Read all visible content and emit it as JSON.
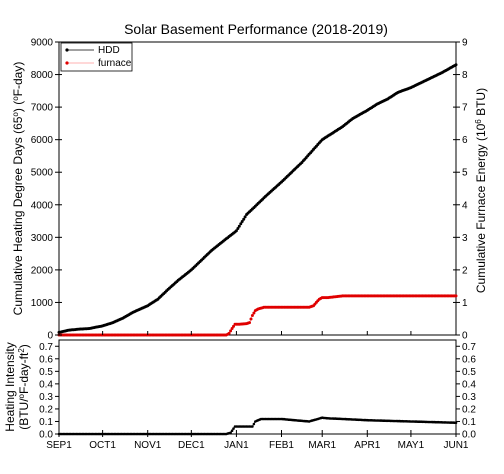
{
  "chart_data": [
    {
      "type": "line",
      "title": "Solar Basement Performance (2018-2019)",
      "ylabel": "Cumulative Heating Degree Days (65°) (°F-day)",
      "ylabel_parts": [
        "Cumulative Heating Degree Days (65",
        "o",
        ") (",
        "o",
        "F-day)"
      ],
      "y2label": "Cumulative Furnace Energy (10^6 BTU)",
      "y2label_parts": [
        "Cumulative Furnace Energy (10",
        "6",
        " BTU)"
      ],
      "ylim": [
        0,
        9000
      ],
      "y2lim": [
        0,
        9
      ],
      "xlim": [
        "2018-09-01",
        "2019-06-01"
      ],
      "x_ticks": [
        "SEP1",
        "OCT1",
        "NOV1",
        "DEC1",
        "JAN1",
        "FEB1",
        "MAR1",
        "APR1",
        "MAY1",
        "JUN1"
      ],
      "y_ticks": [
        0,
        1000,
        2000,
        3000,
        4000,
        5000,
        6000,
        7000,
        8000,
        9000
      ],
      "y2_ticks": [
        0,
        1,
        2,
        3,
        4,
        5,
        6,
        7,
        8,
        9
      ],
      "legend": {
        "placement": "top-left",
        "entries": [
          "HDD",
          "furnace"
        ]
      },
      "series": [
        {
          "name": "HDD",
          "color": "#000000",
          "x": [
            "2018-09-01",
            "2018-09-08",
            "2018-09-15",
            "2018-09-22",
            "2018-10-01",
            "2018-10-08",
            "2018-10-15",
            "2018-10-22",
            "2018-11-01",
            "2018-11-08",
            "2018-11-15",
            "2018-11-22",
            "2018-12-01",
            "2018-12-08",
            "2018-12-15",
            "2018-12-22",
            "2019-01-01",
            "2019-01-08",
            "2019-01-15",
            "2019-01-22",
            "2019-02-01",
            "2019-02-08",
            "2019-02-15",
            "2019-02-22",
            "2019-03-01",
            "2019-03-08",
            "2019-03-15",
            "2019-03-22",
            "2019-04-01",
            "2019-04-08",
            "2019-04-15",
            "2019-04-22",
            "2019-05-01",
            "2019-05-08",
            "2019-05-15",
            "2019-05-22",
            "2019-06-01"
          ],
          "values": [
            80,
            150,
            180,
            200,
            280,
            380,
            520,
            700,
            900,
            1100,
            1400,
            1680,
            2000,
            2300,
            2600,
            2850,
            3200,
            3700,
            4000,
            4300,
            4700,
            5000,
            5300,
            5650,
            6000,
            6200,
            6400,
            6650,
            6900,
            7100,
            7250,
            7450,
            7600,
            7750,
            7900,
            8050,
            8300
          ]
        },
        {
          "name": "furnace",
          "color": "#e00000",
          "x": [
            "2018-09-01",
            "2018-10-01",
            "2018-11-01",
            "2018-12-01",
            "2018-12-25",
            "2018-12-27",
            "2018-12-29",
            "2018-12-31",
            "2019-01-02",
            "2019-01-06",
            "2019-01-08",
            "2019-01-10",
            "2019-01-12",
            "2019-01-14",
            "2019-01-16",
            "2019-01-20",
            "2019-02-10",
            "2019-02-20",
            "2019-02-23",
            "2019-02-25",
            "2019-02-27",
            "2019-03-01",
            "2019-03-05",
            "2019-03-15",
            "2019-04-01",
            "2019-05-01",
            "2019-06-01"
          ],
          "values": [
            0,
            0,
            0,
            0,
            0,
            0.05,
            0.2,
            0.33,
            0.33,
            0.34,
            0.35,
            0.38,
            0.6,
            0.75,
            0.8,
            0.85,
            0.85,
            0.85,
            0.9,
            1.0,
            1.1,
            1.15,
            1.15,
            1.2,
            1.2,
            1.2,
            1.2
          ]
        }
      ]
    },
    {
      "type": "line",
      "ylabel": "Heating Intensity (BTU/°F-day-ft²)",
      "ylabel_parts": [
        "Heating Intensity",
        "(BTU/",
        "o",
        "F-day-ft",
        "2",
        ")"
      ],
      "ylim": [
        0,
        0.75
      ],
      "y_ticks": [
        "0.0",
        "0.1",
        "0.2",
        "0.3",
        "0.4",
        "0.5",
        "0.6",
        "0.7"
      ],
      "y2_ticks": [
        "0.0",
        "0.1",
        "0.2",
        "0.3",
        "0.4",
        "0.5",
        "0.6",
        "0.7"
      ],
      "x_ticks": [
        "SEP1",
        "OCT1",
        "NOV1",
        "DEC1",
        "JAN1",
        "FEB1",
        "MAR1",
        "APR1",
        "MAY1",
        "JUN1"
      ],
      "series": [
        {
          "color": "#000000",
          "x": [
            "2018-09-01",
            "2018-10-01",
            "2018-11-01",
            "2018-12-01",
            "2018-12-25",
            "2018-12-28",
            "2018-12-31",
            "2019-01-05",
            "2019-01-12",
            "2019-01-14",
            "2019-01-18",
            "2019-01-25",
            "2019-02-01",
            "2019-02-10",
            "2019-02-20",
            "2019-02-26",
            "2019-03-01",
            "2019-03-05",
            "2019-03-15",
            "2019-04-01",
            "2019-05-01",
            "2019-06-01"
          ],
          "values": [
            0,
            0,
            0,
            0,
            0,
            0.01,
            0.06,
            0.06,
            0.06,
            0.1,
            0.12,
            0.12,
            0.12,
            0.11,
            0.1,
            0.12,
            0.13,
            0.125,
            0.12,
            0.11,
            0.1,
            0.09
          ]
        }
      ]
    }
  ]
}
